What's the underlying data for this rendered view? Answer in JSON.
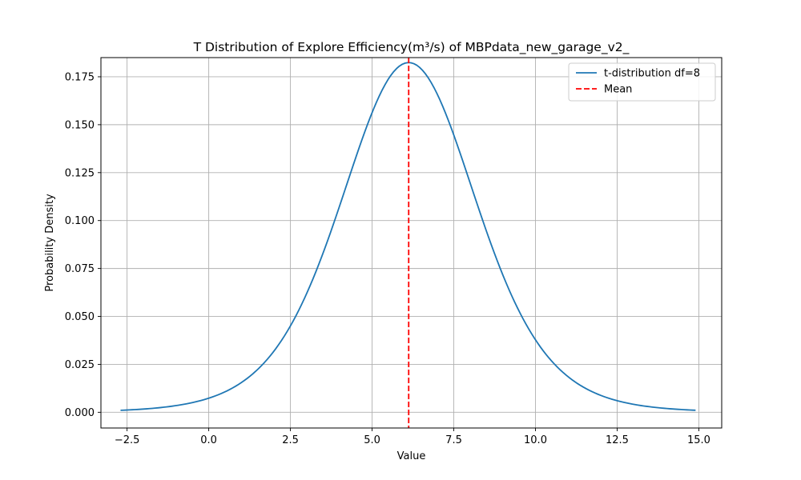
{
  "chart_data": {
    "type": "line",
    "title": "T Distribution of Explore Efficiency(m³/s) of MBPdata_new_garage_v2_",
    "xlabel": "Value",
    "ylabel": "Probability Density",
    "xlim": [
      -3.3,
      15.7
    ],
    "ylim": [
      -0.0082,
      0.185
    ],
    "x_ticks": [
      -2.5,
      0.0,
      2.5,
      5.0,
      7.5,
      10.0,
      12.5,
      15.0
    ],
    "x_tick_labels": [
      "−2.5",
      "0.0",
      "2.5",
      "5.0",
      "7.5",
      "10.0",
      "12.5",
      "15.0"
    ],
    "y_ticks": [
      0.0,
      0.025,
      0.05,
      0.075,
      0.1,
      0.125,
      0.15,
      0.175
    ],
    "y_tick_labels": [
      "0.000",
      "0.025",
      "0.050",
      "0.075",
      "0.100",
      "0.125",
      "0.150",
      "0.175"
    ],
    "grid": true,
    "legend_position": "top-right",
    "distribution": {
      "df": 8,
      "loc": 6.12,
      "scale": 2.12
    },
    "series": [
      {
        "name": "t-distribution df=8",
        "style": "solid",
        "color": "#1f77b4",
        "x": [
          -2.7,
          -2.0,
          -1.0,
          0.0,
          1.0,
          2.0,
          2.5,
          3.0,
          4.0,
          5.0,
          5.5,
          6.12,
          6.5,
          7.0,
          7.5,
          8.0,
          9.0,
          10.0,
          11.0,
          12.0,
          12.5,
          13.0,
          14.0,
          14.9
        ],
        "y": [
          0.0015,
          0.0025,
          0.0049,
          0.0093,
          0.0197,
          0.0383,
          0.0509,
          0.0674,
          0.105,
          0.1491,
          0.1659,
          0.1761,
          0.172,
          0.1593,
          0.1373,
          0.1132,
          0.0671,
          0.036,
          0.0194,
          0.0098,
          0.007,
          0.005,
          0.0027,
          0.0015
        ]
      },
      {
        "name": "Mean",
        "style": "dashed",
        "color": "#ff0000",
        "x_value": 6.12
      }
    ]
  }
}
